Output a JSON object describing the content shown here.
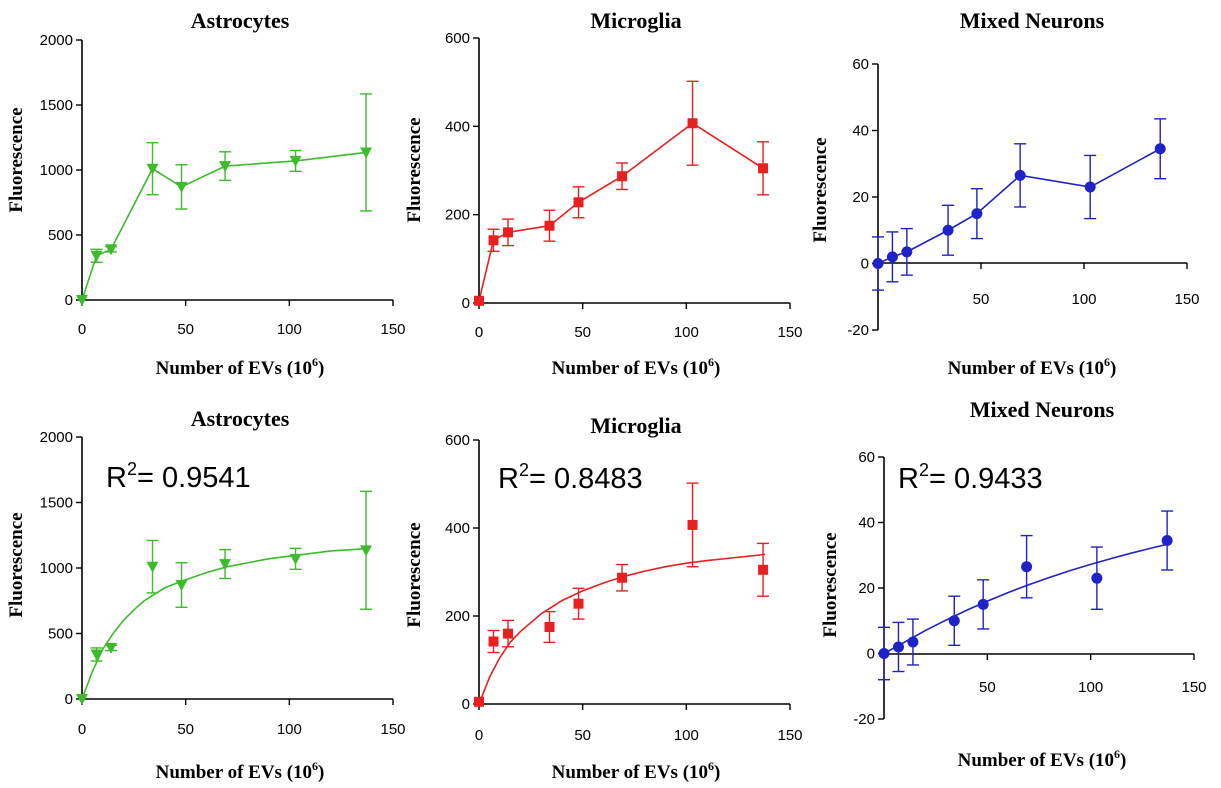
{
  "chart_data": [
    {
      "type": "line",
      "title": "Astrocytes",
      "xlabel": "Number of EVs (10",
      "xlabel_sup": "6",
      "xlabel_end": ")",
      "ylabel": "Fluorescence",
      "xlim": [
        0,
        150
      ],
      "ylim": [
        0,
        2000
      ],
      "xticks": [
        "0",
        "50",
        "100",
        "150"
      ],
      "yticks": [
        "0",
        "500",
        "1000",
        "1500",
        "2000"
      ],
      "color": "#3dbb2c",
      "marker": "triangle-down",
      "x": [
        0,
        7,
        14,
        34,
        48,
        69,
        103,
        137
      ],
      "y": [
        0,
        340,
        390,
        1010,
        870,
        1030,
        1070,
        1135
      ],
      "err": [
        0,
        50,
        20,
        200,
        170,
        110,
        80,
        450
      ]
    },
    {
      "type": "line",
      "title": "Microglia",
      "xlabel": "Number of EVs (10",
      "xlabel_sup": "6",
      "xlabel_end": ")",
      "ylabel": "Fluorescence",
      "xlim": [
        0,
        150
      ],
      "ylim": [
        0,
        600
      ],
      "xticks": [
        "0",
        "50",
        "100",
        "150"
      ],
      "yticks": [
        "0",
        "200",
        "400",
        "600"
      ],
      "color": "#e8201f",
      "marker": "square",
      "x": [
        0,
        7,
        14,
        34,
        48,
        69,
        103,
        137
      ],
      "y": [
        5,
        142,
        160,
        175,
        228,
        287,
        407,
        305
      ],
      "err": [
        0,
        25,
        30,
        35,
        35,
        30,
        95,
        60
      ]
    },
    {
      "type": "line",
      "title": "Mixed Neurons",
      "xlabel": "Number of EVs (10",
      "xlabel_sup": "6",
      "xlabel_end": ")",
      "ylabel": "Fluorescence",
      "xlim": [
        0,
        150
      ],
      "ylim": [
        -20,
        60
      ],
      "xticks": [
        "50",
        "100",
        "150"
      ],
      "yticks": [
        "-20",
        "0",
        "20",
        "40",
        "60"
      ],
      "color": "#1e22c8",
      "marker": "circle",
      "x": [
        0,
        7,
        14,
        34,
        48,
        69,
        103,
        137
      ],
      "y": [
        0,
        2,
        3.5,
        10,
        15,
        26.5,
        23,
        34.5
      ],
      "err": [
        8,
        7.5,
        7,
        7.5,
        7.5,
        9.5,
        9.5,
        9
      ]
    },
    {
      "type": "scatter",
      "title": "Astrocytes",
      "annotation": "= 0.9541",
      "xlabel": "Number of EVs (10",
      "xlabel_sup": "6",
      "xlabel_end": ")",
      "ylabel": "Fluorescence",
      "xlim": [
        0,
        150
      ],
      "ylim": [
        0,
        2000
      ],
      "xticks": [
        "0",
        "50",
        "100",
        "150"
      ],
      "yticks": [
        "0",
        "500",
        "1000",
        "1500",
        "2000"
      ],
      "color": "#3dbb2c",
      "marker": "triangle-down",
      "fit": "saturation",
      "x": [
        0,
        7,
        14,
        34,
        48,
        69,
        103,
        137
      ],
      "y": [
        0,
        340,
        390,
        1010,
        870,
        1030,
        1070,
        1135
      ],
      "err": [
        0,
        50,
        20,
        200,
        170,
        110,
        80,
        450
      ],
      "fit_x": [
        0,
        5,
        10,
        15,
        20,
        25,
        30,
        40,
        50,
        60,
        70,
        80,
        90,
        100,
        110,
        120,
        130,
        138
      ],
      "fit_y": [
        0,
        210,
        380,
        500,
        600,
        680,
        750,
        850,
        910,
        965,
        1010,
        1040,
        1070,
        1090,
        1110,
        1130,
        1140,
        1150
      ]
    },
    {
      "type": "scatter",
      "title": "Microglia",
      "annotation": "= 0.8483",
      "xlabel": "Number of EVs (10",
      "xlabel_sup": "6",
      "xlabel_end": ")",
      "ylabel": "Fluorescence",
      "xlim": [
        0,
        150
      ],
      "ylim": [
        0,
        600
      ],
      "xticks": [
        "0",
        "50",
        "100",
        "150"
      ],
      "yticks": [
        "0",
        "200",
        "400",
        "600"
      ],
      "color": "#e8201f",
      "marker": "square",
      "fit": "saturation",
      "x": [
        0,
        7,
        14,
        34,
        48,
        69,
        103,
        137
      ],
      "y": [
        5,
        142,
        160,
        175,
        228,
        287,
        407,
        305
      ],
      "err": [
        0,
        25,
        30,
        35,
        35,
        30,
        95,
        60
      ],
      "fit_x": [
        0,
        5,
        10,
        15,
        20,
        30,
        40,
        50,
        60,
        70,
        80,
        90,
        100,
        110,
        120,
        130,
        138
      ],
      "fit_y": [
        0,
        60,
        105,
        140,
        165,
        205,
        235,
        257,
        275,
        290,
        302,
        312,
        320,
        326,
        331,
        336,
        340
      ]
    },
    {
      "type": "scatter",
      "title": "Mixed Neurons",
      "annotation": "= 0.9433",
      "xlabel": "Number of EVs (10",
      "xlabel_sup": "6",
      "xlabel_end": ")",
      "ylabel": "Fluorescence",
      "xlim": [
        0,
        150
      ],
      "ylim": [
        -20,
        60
      ],
      "xticks": [
        "50",
        "100",
        "150"
      ],
      "yticks": [
        "-20",
        "0",
        "20",
        "40",
        "60"
      ],
      "color": "#1e22c8",
      "marker": "circle",
      "fit": "saturation",
      "x": [
        0,
        7,
        14,
        34,
        48,
        69,
        103,
        137
      ],
      "y": [
        0,
        2,
        3.5,
        10,
        15,
        26.5,
        23,
        34.5
      ],
      "err": [
        8,
        7.5,
        7,
        7.5,
        7.5,
        9.5,
        9.5,
        9
      ],
      "fit_x": [
        0,
        10,
        20,
        30,
        40,
        50,
        60,
        70,
        80,
        90,
        100,
        110,
        120,
        130,
        138
      ],
      "fit_y": [
        0,
        3.5,
        7,
        10.2,
        13.2,
        16,
        18.6,
        21,
        23.2,
        25.3,
        27.2,
        29,
        30.7,
        32.3,
        33.5
      ]
    }
  ]
}
